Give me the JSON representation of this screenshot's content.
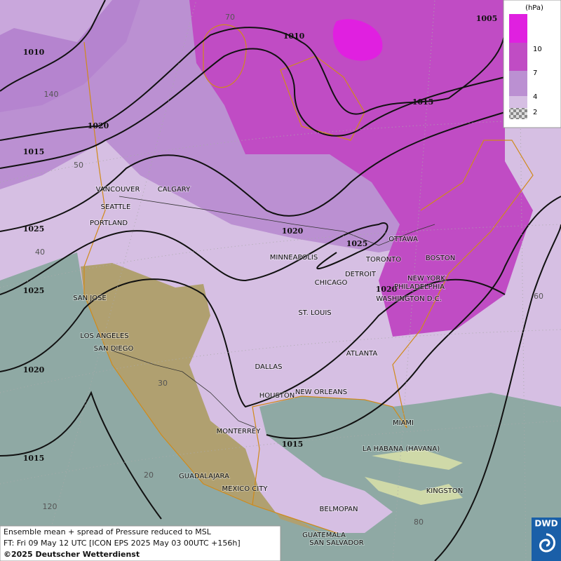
{
  "isobar_labels": [
    "1010",
    "1010",
    "1005",
    "1015",
    "1020",
    "1015",
    "1025",
    "1020",
    "1025",
    "1020",
    "1025",
    "1020",
    "1015",
    "1015"
  ],
  "graticule_labels": [
    "70",
    "140",
    "50",
    "40",
    "60",
    "30",
    "20",
    "120",
    "80"
  ],
  "cities": [
    "VANCOUVER",
    "CALGARY",
    "SEATTLE",
    "PORTLAND",
    "SAN JOSE",
    "LOS ANGELES",
    "SAN DIEGO",
    "DALLAS",
    "HOUSTON",
    "NEW ORLEANS",
    "MONTERREY",
    "GUADALAJARA",
    "MEXICO CITY",
    "BELMOPAN",
    "GUATEMALA",
    "SAN SALVADOR",
    "LA HABANA (HAVANA)",
    "KINGSTON",
    "MIAMI",
    "ATLANTA",
    "ST. LOUIS",
    "CHICAGO",
    "DETROIT",
    "TORONTO",
    "MINNEAPOLIS",
    "OTTAWA",
    "BOSTON",
    "NEW YORK",
    "PHILADELPHIA",
    "WASHINGTON D.C."
  ],
  "legend": {
    "title": "(hPa)",
    "ticks": [
      "10",
      "7",
      "4",
      "2"
    ]
  },
  "footer": {
    "line1": "Ensemble mean + spread of Pressure reduced to MSL",
    "line2": "FT: Fri 09 May 12 UTC [ICON EPS 2025 May 03 00UTC +156h]",
    "line3": "©2025 Deutscher Wetterdienst"
  },
  "logo": "DWD"
}
